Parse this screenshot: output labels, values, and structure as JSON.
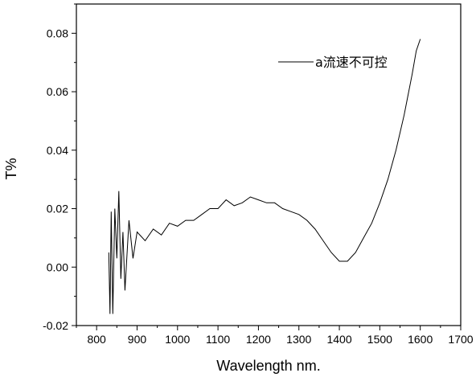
{
  "chart_data": {
    "type": "line",
    "xlabel": "Wavelength nm.",
    "ylabel": "T%",
    "xlim": [
      750,
      1700
    ],
    "ylim": [
      -0.02,
      0.09
    ],
    "x_ticks": [
      800,
      900,
      1000,
      1100,
      1200,
      1300,
      1400,
      1500,
      1600,
      1700
    ],
    "y_ticks": [
      -0.02,
      0.0,
      0.02,
      0.04,
      0.06,
      0.08
    ],
    "x_tick_labels": [
      "800",
      "900",
      "1000",
      "1100",
      "1200",
      "1300",
      "1400",
      "1500",
      "1600",
      "1700"
    ],
    "y_tick_labels": [
      "-0.02",
      "0.00",
      "0.02",
      "0.04",
      "0.06",
      "0.08"
    ],
    "grid": false,
    "legend_position": "top-right",
    "series": [
      {
        "name": "a流速不可控",
        "color": "#000000",
        "x": [
          830,
          833,
          836,
          840,
          845,
          850,
          855,
          860,
          865,
          870,
          880,
          890,
          900,
          920,
          940,
          960,
          980,
          1000,
          1020,
          1040,
          1060,
          1080,
          1100,
          1120,
          1140,
          1160,
          1180,
          1200,
          1220,
          1240,
          1260,
          1280,
          1300,
          1320,
          1340,
          1360,
          1380,
          1400,
          1420,
          1440,
          1460,
          1480,
          1500,
          1520,
          1540,
          1560,
          1580,
          1590,
          1600
        ],
        "y": [
          0.005,
          -0.016,
          0.019,
          -0.016,
          0.02,
          0.003,
          0.026,
          -0.004,
          0.012,
          -0.008,
          0.016,
          0.003,
          0.012,
          0.009,
          0.013,
          0.011,
          0.015,
          0.014,
          0.016,
          0.016,
          0.018,
          0.02,
          0.02,
          0.023,
          0.021,
          0.022,
          0.024,
          0.023,
          0.022,
          0.022,
          0.02,
          0.019,
          0.018,
          0.016,
          0.013,
          0.009,
          0.005,
          0.002,
          0.002,
          0.005,
          0.01,
          0.015,
          0.022,
          0.03,
          0.04,
          0.052,
          0.066,
          0.074,
          0.078
        ]
      }
    ]
  }
}
